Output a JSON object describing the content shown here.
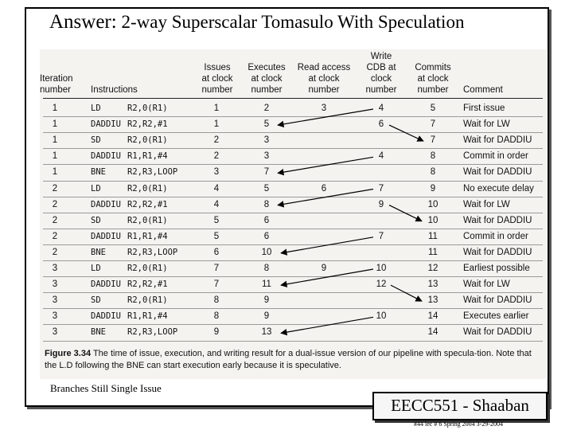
{
  "title": {
    "answer": "Answer:",
    "rest": "2-way Superscalar Tomasulo With Speculation"
  },
  "table": {
    "headers": {
      "iteration": [
        "Iteration",
        "number"
      ],
      "instructions": [
        "Instructions"
      ],
      "issues": [
        "Issues",
        "at clock",
        "number"
      ],
      "executes": [
        "Executes",
        "at clock",
        "number"
      ],
      "read_access": [
        "Read access",
        "at clock",
        "number"
      ],
      "write_cdb": [
        "Write",
        "CDB at",
        "clock",
        "number"
      ],
      "commits": [
        "Commits",
        "at clock",
        "number"
      ],
      "comment": [
        "Comment"
      ]
    },
    "rows": [
      {
        "iter": "1",
        "op": "LD",
        "args": "R2,0(R1)",
        "issue": "1",
        "exec": "2",
        "read": "3",
        "write": "4",
        "commit": "5",
        "comment": "First issue"
      },
      {
        "iter": "1",
        "op": "DADDIU",
        "args": "R2,R2,#1",
        "issue": "1",
        "exec": "5",
        "read": "",
        "write": "6",
        "commit": "7",
        "comment": "Wait for LW"
      },
      {
        "iter": "1",
        "op": "SD",
        "args": "R2,0(R1)",
        "issue": "2",
        "exec": "3",
        "read": "",
        "write": "",
        "commit": "7",
        "comment": "Wait for DADDIU"
      },
      {
        "iter": "1",
        "op": "DADDIU",
        "args": "R1,R1,#4",
        "issue": "2",
        "exec": "3",
        "read": "",
        "write": "4",
        "commit": "8",
        "comment": "Commit in order"
      },
      {
        "iter": "1",
        "op": "BNE",
        "args": "R2,R3,LOOP",
        "issue": "3",
        "exec": "7",
        "read": "",
        "write": "",
        "commit": "8",
        "comment": "Wait for DADDIU"
      },
      {
        "iter": "2",
        "op": "LD",
        "args": "R2,0(R1)",
        "issue": "4",
        "exec": "5",
        "read": "6",
        "write": "7",
        "commit": "9",
        "comment": "No execute delay"
      },
      {
        "iter": "2",
        "op": "DADDIU",
        "args": "R2,R2,#1",
        "issue": "4",
        "exec": "8",
        "read": "",
        "write": "9",
        "commit": "10",
        "comment": "Wait for LW"
      },
      {
        "iter": "2",
        "op": "SD",
        "args": "R2,0(R1)",
        "issue": "5",
        "exec": "6",
        "read": "",
        "write": "",
        "commit": "10",
        "comment": "Wait for DADDIU"
      },
      {
        "iter": "2",
        "op": "DADDIU",
        "args": "R1,R1,#4",
        "issue": "5",
        "exec": "6",
        "read": "",
        "write": "7",
        "commit": "11",
        "comment": "Commit in order"
      },
      {
        "iter": "2",
        "op": "BNE",
        "args": "R2,R3,LOOP",
        "issue": "6",
        "exec": "10",
        "read": "",
        "write": "",
        "commit": "11",
        "comment": "Wait for DADDIU"
      },
      {
        "iter": "3",
        "op": "LD",
        "args": "R2,0(R1)",
        "issue": "7",
        "exec": "8",
        "read": "9",
        "write": "10",
        "commit": "12",
        "comment": "Earliest possible"
      },
      {
        "iter": "3",
        "op": "DADDIU",
        "args": "R2,R2,#1",
        "issue": "7",
        "exec": "11",
        "read": "",
        "write": "12",
        "commit": "13",
        "comment": "Wait for LW"
      },
      {
        "iter": "3",
        "op": "SD",
        "args": "R2,0(R1)",
        "issue": "8",
        "exec": "9",
        "read": "",
        "write": "",
        "commit": "13",
        "comment": "Wait for DADDIU"
      },
      {
        "iter": "3",
        "op": "DADDIU",
        "args": "R1,R1,#4",
        "issue": "8",
        "exec": "9",
        "read": "",
        "write": "10",
        "commit": "14",
        "comment": "Executes earlier"
      },
      {
        "iter": "3",
        "op": "BNE",
        "args": "R2,R3,LOOP",
        "issue": "9",
        "exec": "13",
        "read": "",
        "write": "",
        "commit": "14",
        "comment": "Wait for DADDIU"
      }
    ]
  },
  "caption": {
    "label": "Figure 3.34",
    "text": "The time of issue, execution, and writing result for a dual-issue version of our pipeline with specula-tion. Note that the L.D following the BNE can start execution early because it is speculative."
  },
  "note": "Branches Still Single Issue",
  "brand": "EECC551 - Shaaban",
  "footer": "#44 lec # 6 Spring 2004 3-29-2004",
  "arrow_color": "#000000"
}
